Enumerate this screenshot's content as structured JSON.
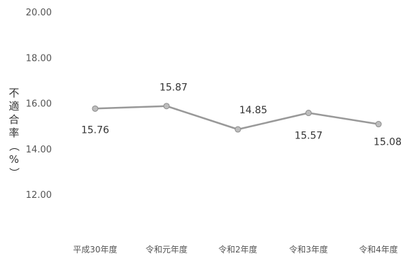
{
  "chart_data": {
    "type": "line",
    "ylabel": "不適合率（%）",
    "ylim": [
      12,
      20
    ],
    "yticks": [
      "12.00",
      "14.00",
      "16.00",
      "18.00",
      "20.00"
    ],
    "categories": [
      "平成30年度",
      "令和元年度",
      "令和2年度",
      "令和3年度",
      "令和4年度"
    ],
    "series": [
      {
        "values": [
          15.76,
          15.87,
          14.85,
          15.57,
          15.08
        ]
      }
    ],
    "data_labels": [
      "15.76",
      "15.87",
      "14.85",
      "15.57",
      "15.08"
    ],
    "grid": false,
    "line_color": "#999999",
    "marker_color": "#bdbdbd"
  }
}
